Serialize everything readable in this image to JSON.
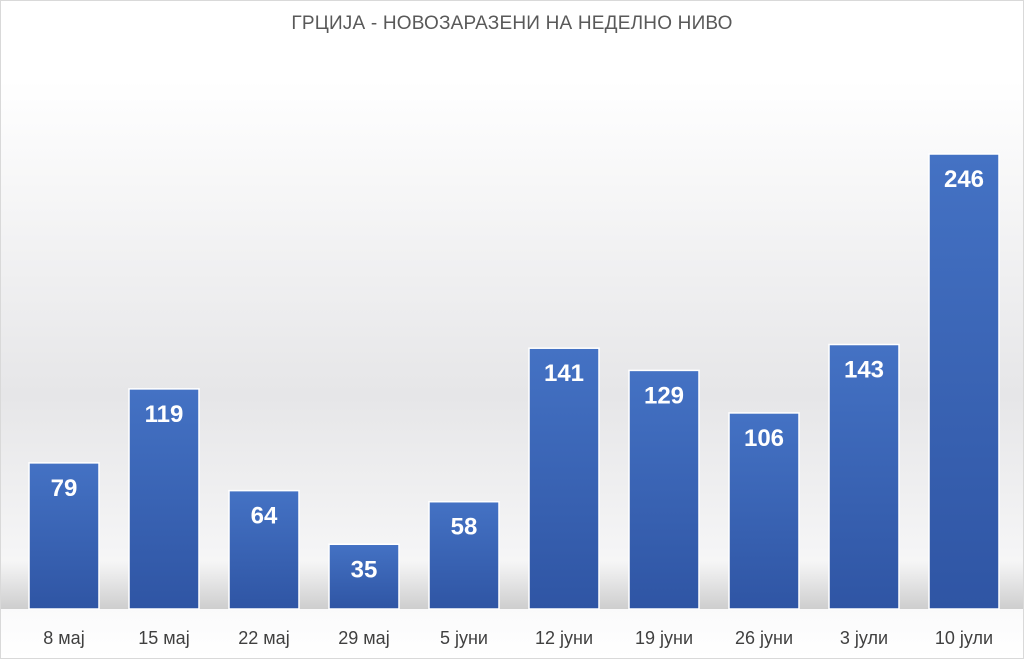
{
  "chart_data": {
    "type": "bar",
    "title": "ГРЦИЈА - НОВОЗАРАЗЕНИ НА НЕДЕЛНО НИВО",
    "categories": [
      "8 мај",
      "15 мај",
      "22 мај",
      "29 мај",
      "5 јуни",
      "12 јуни",
      "19 јуни",
      "26 јуни",
      "3 јули",
      "10 јули"
    ],
    "values": [
      79,
      119,
      64,
      35,
      58,
      141,
      129,
      106,
      143,
      246
    ],
    "ylim": [
      0,
      246
    ],
    "grid": false,
    "legend": "none",
    "data_labels": "inside-top",
    "colors": {
      "bar_top": "#4472C4",
      "bar_bottom": "#2F55A4",
      "label": "#FFFFFF",
      "tick": "#404040"
    }
  }
}
